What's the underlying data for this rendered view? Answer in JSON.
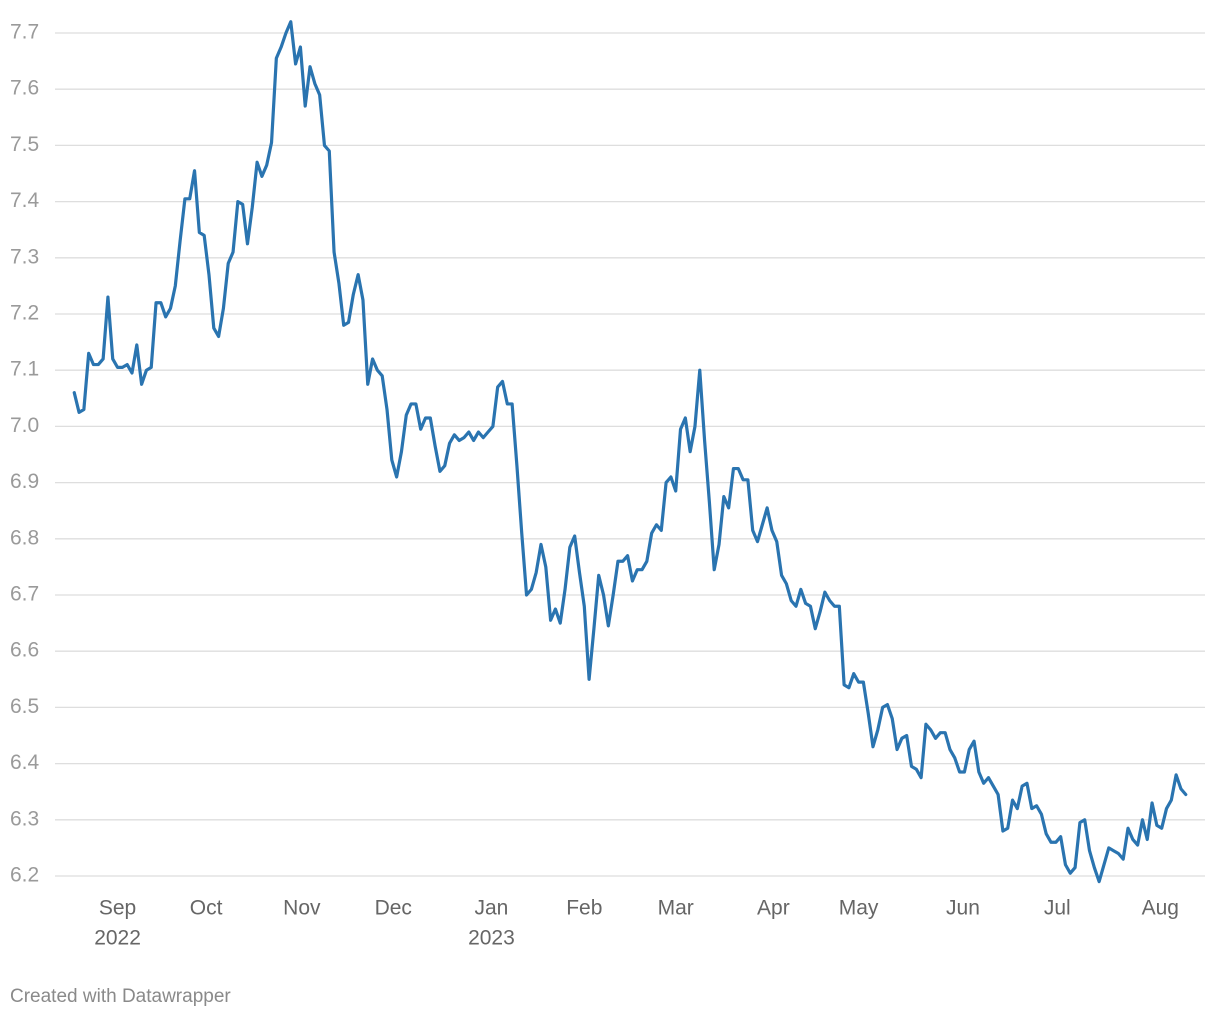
{
  "chart_data": {
    "type": "line",
    "color": "#2a74b0",
    "grid": true,
    "ylim": [
      6.2,
      7.7
    ],
    "yticks": [
      6.2,
      6.3,
      6.4,
      6.5,
      6.6,
      6.7,
      6.8,
      6.9,
      {
        "value": 7,
        "label": "7.0"
      },
      7.1,
      7.2,
      7.3,
      7.4,
      7.5,
      7.6,
      7.7
    ],
    "xlim": [
      -4,
      235
    ],
    "xticks": [
      {
        "value": 9,
        "label": [
          "Sep",
          "2022"
        ]
      },
      {
        "value": 27.4,
        "label": [
          "Oct"
        ]
      },
      {
        "value": 47.3,
        "label": [
          "Nov"
        ]
      },
      {
        "value": 66.3,
        "label": [
          "Dec"
        ]
      },
      {
        "value": 86.7,
        "label": [
          "Jan",
          "2023"
        ]
      },
      {
        "value": 106,
        "label": [
          "Feb"
        ]
      },
      {
        "value": 125,
        "label": [
          "Mar"
        ]
      },
      {
        "value": 145.3,
        "label": [
          "Apr"
        ]
      },
      {
        "value": 163,
        "label": [
          "May"
        ]
      },
      {
        "value": 184.7,
        "label": [
          "Jun"
        ]
      },
      {
        "value": 204.3,
        "label": [
          "Jul"
        ]
      },
      {
        "value": 225.7,
        "label": [
          "Aug"
        ]
      }
    ],
    "values": [
      7.06,
      7.025,
      7.03,
      7.13,
      7.11,
      7.11,
      7.12,
      7.23,
      7.12,
      7.105,
      7.105,
      7.11,
      7.095,
      7.145,
      7.075,
      7.1,
      7.105,
      7.22,
      7.22,
      7.195,
      7.21,
      7.25,
      7.33,
      7.405,
      7.405,
      7.455,
      7.345,
      7.34,
      7.27,
      7.175,
      7.16,
      7.21,
      7.29,
      7.31,
      7.4,
      7.395,
      7.325,
      7.39,
      7.47,
      7.445,
      7.465,
      7.505,
      7.655,
      7.675,
      7.7,
      7.72,
      7.645,
      7.675,
      7.57,
      7.64,
      7.61,
      7.59,
      7.5,
      7.49,
      7.31,
      7.255,
      7.18,
      7.185,
      7.235,
      7.27,
      7.225,
      7.075,
      7.12,
      7.1,
      7.09,
      7.03,
      6.94,
      6.91,
      6.955,
      7.02,
      7.04,
      7.04,
      6.995,
      7.015,
      7.015,
      6.965,
      6.92,
      6.93,
      6.97,
      6.985,
      6.975,
      6.98,
      6.99,
      6.975,
      6.99,
      6.98,
      6.99,
      7.0,
      7.07,
      7.08,
      7.04,
      7.04,
      6.93,
      6.81,
      6.7,
      6.71,
      6.74,
      6.79,
      6.75,
      6.655,
      6.675,
      6.65,
      6.71,
      6.785,
      6.805,
      6.74,
      6.68,
      6.55,
      6.64,
      6.735,
      6.7,
      6.645,
      6.7,
      6.76,
      6.76,
      6.77,
      6.725,
      6.745,
      6.745,
      6.76,
      6.81,
      6.825,
      6.815,
      6.9,
      6.91,
      6.885,
      6.995,
      7.015,
      6.955,
      7.0,
      7.1,
      6.975,
      6.865,
      6.745,
      6.79,
      6.875,
      6.855,
      6.925,
      6.925,
      6.905,
      6.905,
      6.815,
      6.795,
      6.825,
      6.855,
      6.815,
      6.795,
      6.735,
      6.72,
      6.69,
      6.68,
      6.71,
      6.685,
      6.68,
      6.64,
      6.67,
      6.705,
      6.69,
      6.68,
      6.68,
      6.54,
      6.535,
      6.56,
      6.545,
      6.545,
      6.49,
      6.43,
      6.46,
      6.5,
      6.505,
      6.48,
      6.425,
      6.445,
      6.45,
      6.395,
      6.39,
      6.375,
      6.47,
      6.46,
      6.445,
      6.455,
      6.455,
      6.425,
      6.41,
      6.385,
      6.385,
      6.425,
      6.44,
      6.385,
      6.365,
      6.375,
      6.36,
      6.345,
      6.28,
      6.285,
      6.335,
      6.32,
      6.36,
      6.365,
      6.32,
      6.325,
      6.31,
      6.275,
      6.26,
      6.26,
      6.27,
      6.22,
      6.205,
      6.215,
      6.295,
      6.3,
      6.245,
      6.215,
      6.19,
      6.22,
      6.25,
      6.245,
      6.24,
      6.23,
      6.285,
      6.265,
      6.255,
      6.3,
      6.265,
      6.33,
      6.29,
      6.285,
      6.32,
      6.335,
      6.38,
      6.355,
      6.345
    ],
    "credit": "Created with Datawrapper"
  }
}
